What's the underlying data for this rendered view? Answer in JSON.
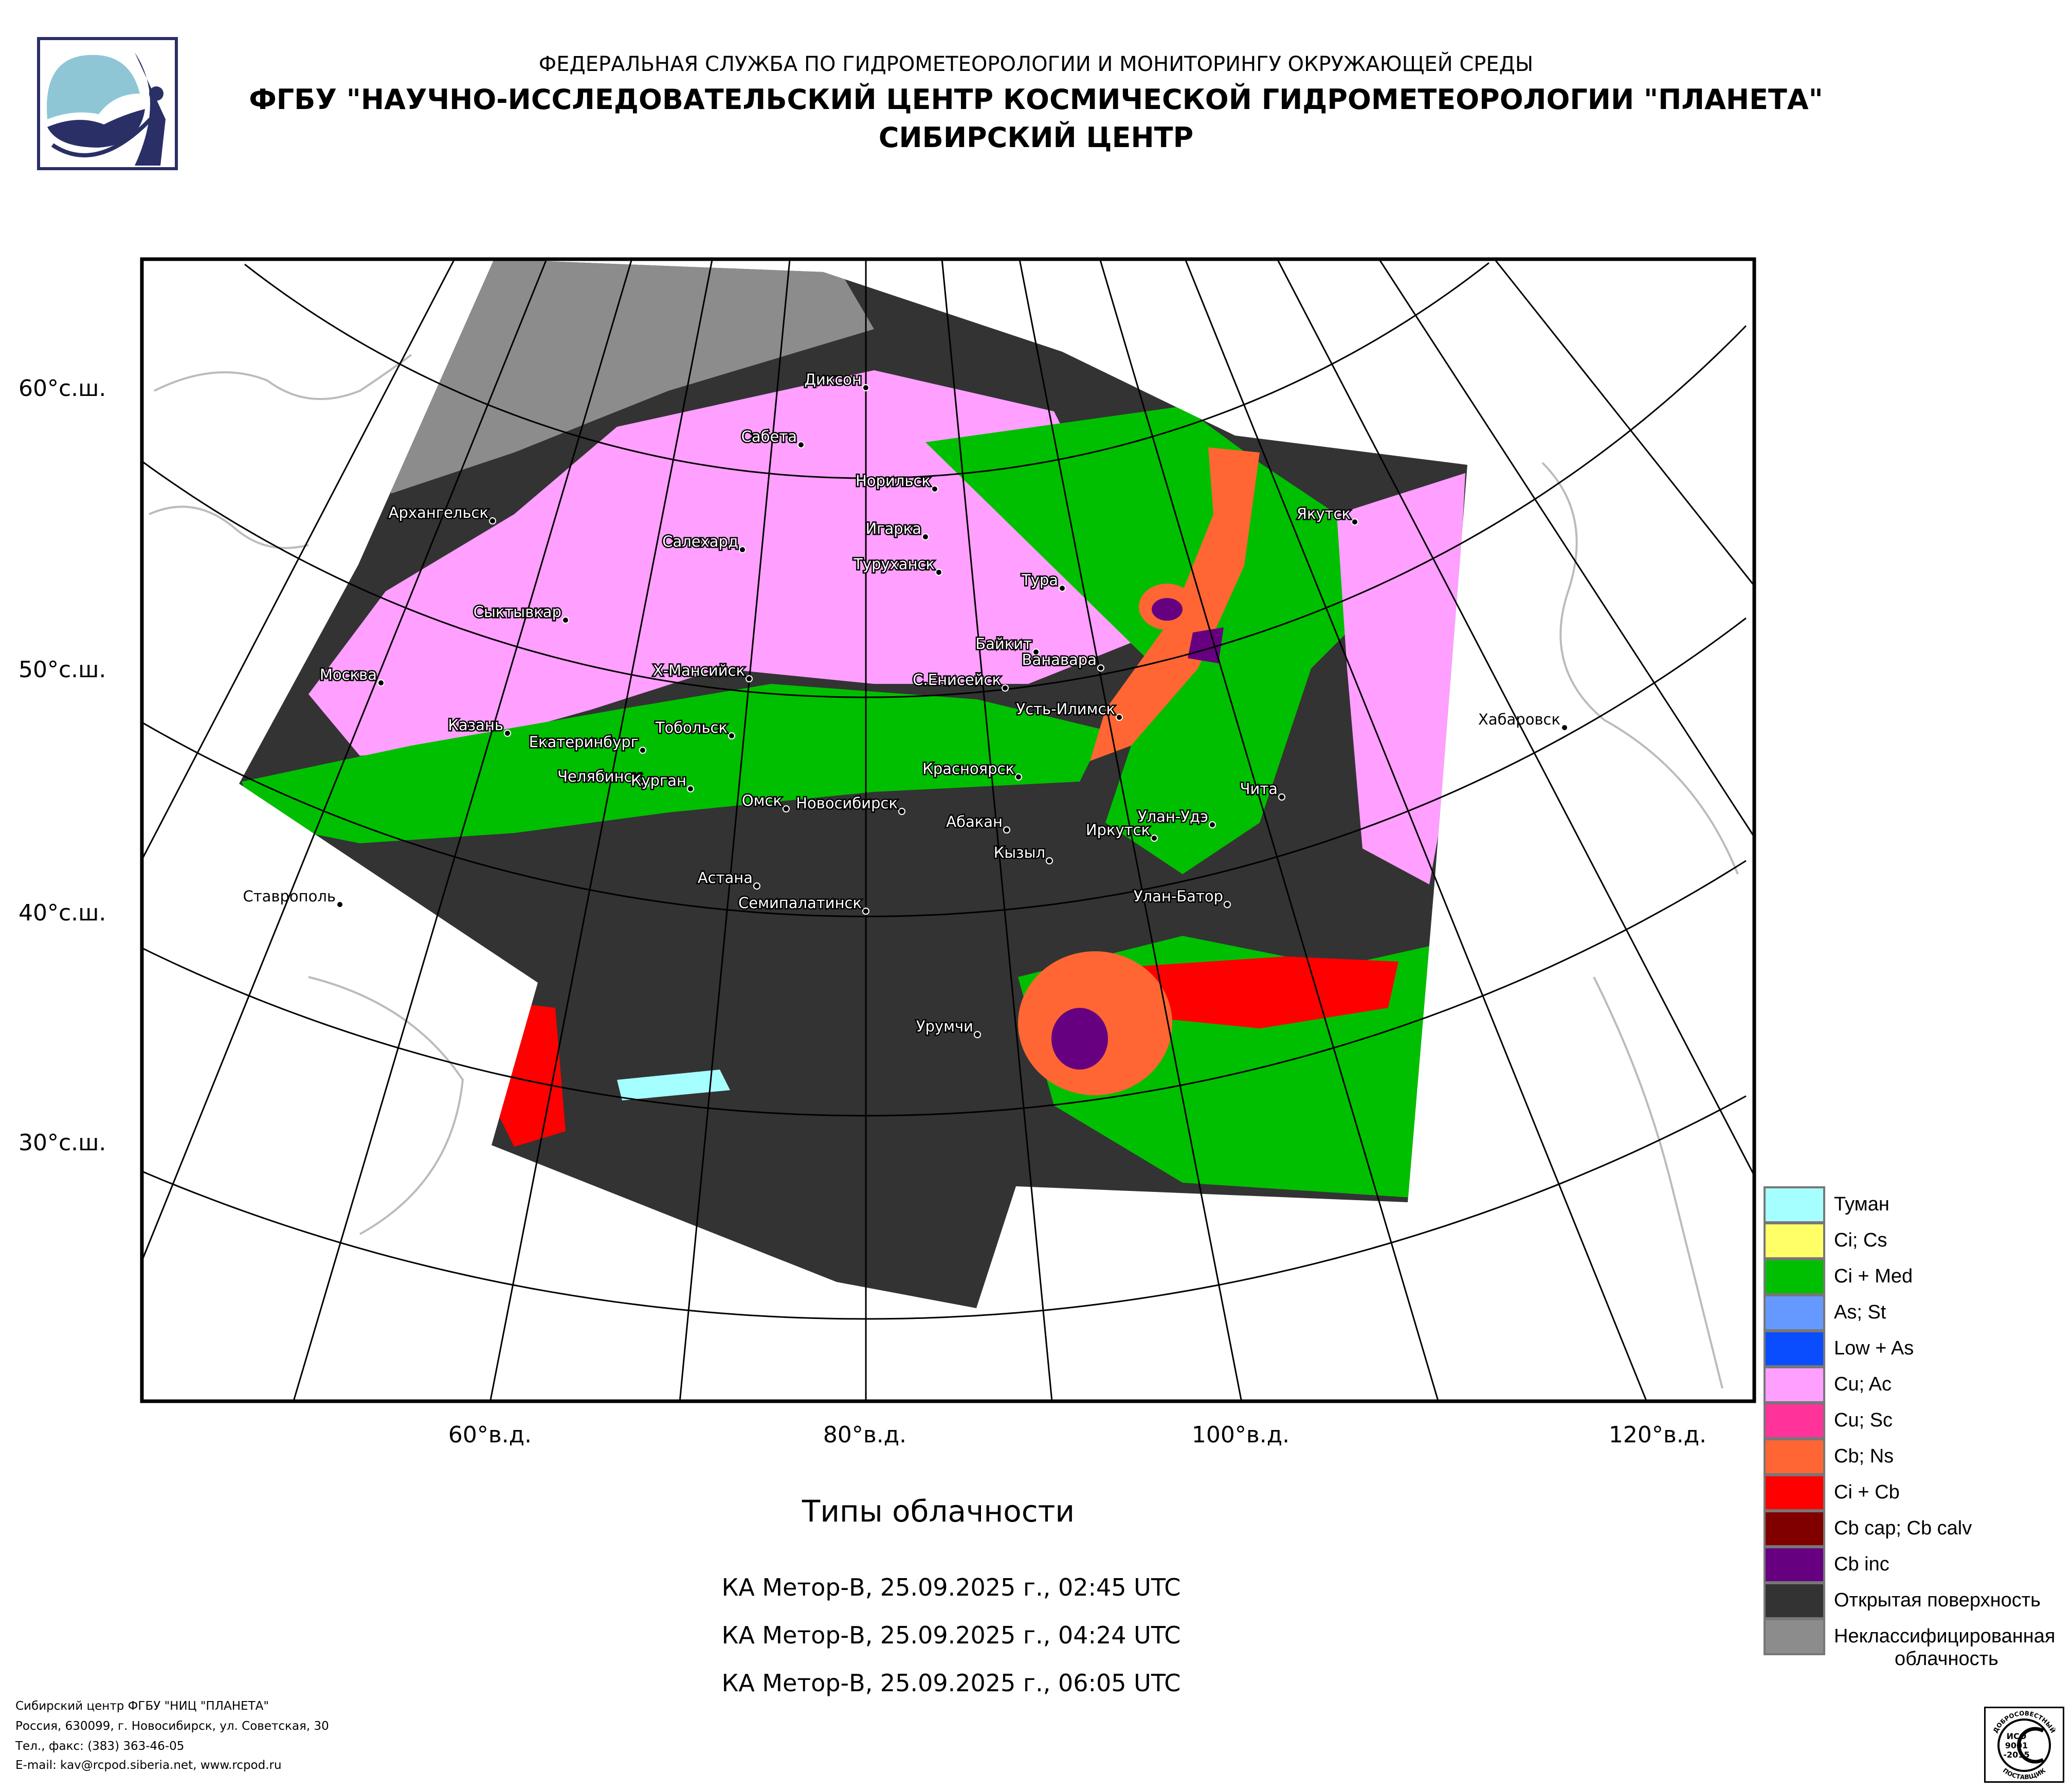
{
  "header": {
    "line1": "ФЕДЕРАЛЬНАЯ СЛУЖБА ПО ГИДРОМЕТЕОРОЛОГИИ И МОНИТОРИНГУ ОКРУЖАЮЩЕЙ СРЕДЫ",
    "line2": "ФГБУ \"НАУЧНО-ИССЛЕДОВАТЕЛЬСКИЙ ЦЕНТР КОСМИЧЕСКОЙ ГИДРОМЕТЕОРОЛОГИИ \"ПЛАНЕТА\"",
    "line3": "СИБИРСКИЙ ЦЕНТР"
  },
  "map": {
    "lat_labels": [
      "60°с.ш.",
      "50°с.ш.",
      "40°с.ш.",
      "30°с.ш."
    ],
    "lon_labels": [
      "60°в.д.",
      "80°в.д.",
      "100°в.д.",
      "120°в.д."
    ],
    "cities": [
      "Диксон",
      "Сабета",
      "Норильск",
      "Игарка",
      "Туруханск",
      "Архангельск",
      "Салехард",
      "Тура",
      "Якутск",
      "Сыктывкар",
      "Байкит",
      "Ванавара",
      "Москва",
      "Х-Мансийск",
      "С.Енисейск",
      "Усть-Илимск",
      "Казань",
      "Тобольск",
      "Хабаровск",
      "Екатеринбург",
      "Красноярск",
      "Челябинск",
      "Курган",
      "Омск",
      "Новосибирск",
      "Абакан",
      "Чита",
      "Улан-Удэ",
      "Иркутск",
      "Кызыл",
      "Астана",
      "Семипалатинск",
      "Улан-Батор",
      "Ставрополь",
      "Урумчи"
    ]
  },
  "title": "Типы облачности",
  "passes": [
    "КА Метор-В, 25.09.2025 г., 02:45 UTC",
    "КА Метор-В, 25.09.2025 г., 04:24 UTC",
    "КА Метор-В, 25.09.2025 г., 06:05 UTC"
  ],
  "legend": [
    {
      "label": "Туман",
      "color": "#a6ffff"
    },
    {
      "label": "Ci; Cs",
      "color": "#ffff66"
    },
    {
      "label": "Ci + Med",
      "color": "#00bf00"
    },
    {
      "label": "As; St",
      "color": "#6699ff"
    },
    {
      "label": "Low + As",
      "color": "#0a4dff"
    },
    {
      "label": "Cu; Ac",
      "color": "#ff9fff"
    },
    {
      "label": "Cu; Sc",
      "color": "#ff3399"
    },
    {
      "label": "Cb; Ns",
      "color": "#ff6633"
    },
    {
      "label": "Ci + Cb",
      "color": "#ff0000"
    },
    {
      "label": "Cb cap; Cb calv",
      "color": "#800000"
    },
    {
      "label": "Cb inc",
      "color": "#660080"
    },
    {
      "label": "Открытая поверхность",
      "color": "#333333"
    },
    {
      "label": "Неклассифицированная",
      "label2": "облачность",
      "color": "#8c8c8c"
    }
  ],
  "footer": {
    "line1": "Сибирский центр ФГБУ \"НИЦ \"ПЛАНЕТА\"",
    "line2": "Россия, 630099, г. Новосибирск, ул. Советская, 30",
    "line3": "Тел., факс: (383) 363-46-05",
    "line4": "E-mail: kav@rcpod.siberia.net, www.rcpod.ru"
  },
  "iso_badge": {
    "text": "ИСО 9001 -2015",
    "top": "ДОБРОСОВЕСТНЫЙ",
    "bottom": "ПОСТАВЩИК"
  }
}
